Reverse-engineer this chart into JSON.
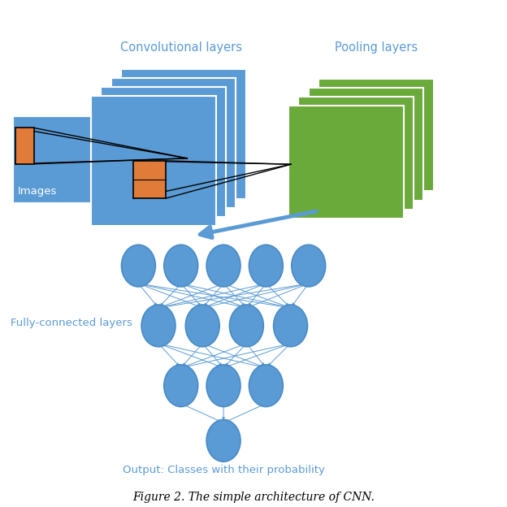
{
  "blue_color": "#5B9BD5",
  "green_color": "#6aaa3a",
  "orange_color": "#E07B39",
  "arrow_color": "#5B9BD5",
  "text_color": "#5B9BD5",
  "background": "#ffffff",
  "title": "Figure 2. The simple architecture of CNN.",
  "label_conv": "Convolutional layers",
  "label_pool": "Pooling layers",
  "label_fc": "Fully-connected layers",
  "label_output": "Output: Classes with their probability",
  "label_images": "Images",
  "node_color": "#5B9BD5",
  "node_edge_color": "#4a8bc4"
}
